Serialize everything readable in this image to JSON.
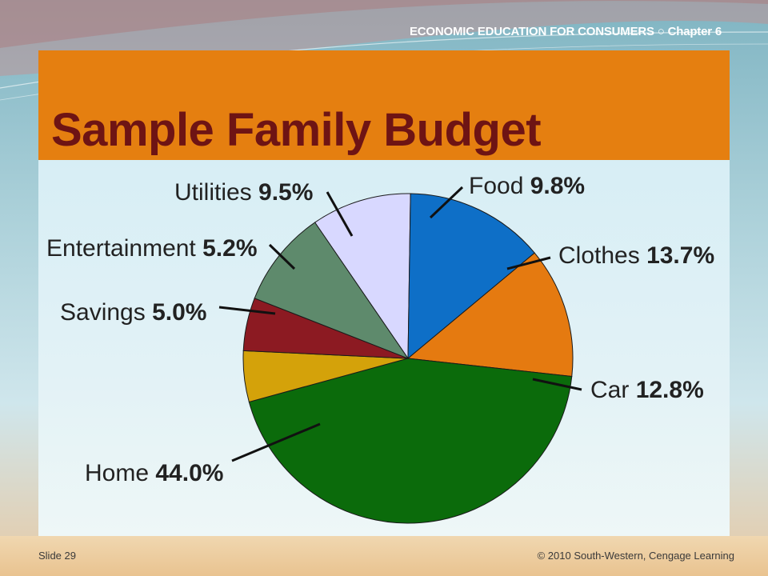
{
  "header": {
    "course_line": "ECONOMIC EDUCATION FOR CONSUMERS ○ Chapter 6"
  },
  "title": "Sample Family Budget",
  "footer": {
    "slide": "Slide 29",
    "copyright": "© 2010 South-Western, Cengage Learning"
  },
  "colors": {
    "title_band": "#e57f10",
    "title_text": "#6e1414"
  },
  "chart_data": {
    "type": "pie",
    "title": "Sample Family Budget",
    "slices": [
      {
        "label": "Food",
        "value_text": "9.8%",
        "value": 9.8,
        "color": "#d8d8ff"
      },
      {
        "label": "Clothes",
        "value_text": "13.7%",
        "value": 13.7,
        "color": "#0e6fc7"
      },
      {
        "label": "Car",
        "value_text": "12.8%",
        "value": 12.8,
        "color": "#e57a10"
      },
      {
        "label": "Home",
        "value_text": "44.0%",
        "value": 44.0,
        "color": "#0b6b0b"
      },
      {
        "label": "Savings",
        "value_text": "5.0%",
        "value": 5.0,
        "color": "#d4a20a"
      },
      {
        "label": "Entertainment",
        "value_text": "5.2%",
        "value": 5.2,
        "color": "#8c1a22"
      },
      {
        "label": "Utilities",
        "value_text": "9.5%",
        "value": 9.5,
        "color": "#5e8a6c"
      }
    ],
    "legend": "none",
    "start_angle_deg": -34.4,
    "direction": "clockwise"
  }
}
